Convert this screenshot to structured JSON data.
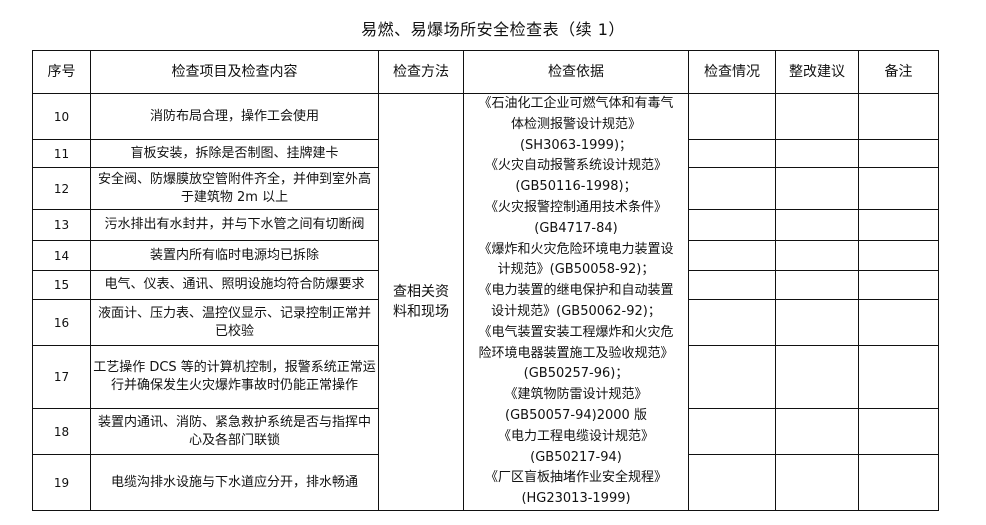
{
  "title": "易燃、易爆场所安全检查表（续 1）",
  "headers": [
    "序号",
    "检查项目及检查内容",
    "检查方法",
    "检查依据",
    "检查情况",
    "整改建议",
    "备注"
  ],
  "rows": [
    {
      "no": "10",
      "item": "消防布局合理，操作工会使用"
    },
    {
      "no": "11",
      "item": "盲板安装，拆除是否制图、挂牌建卡"
    },
    {
      "no": "12",
      "item": "安全阀、防爆膜放空管附件齐全，并伸到室外高于建筑物 2m 以上"
    },
    {
      "no": "13",
      "item": "污水排出有水封井，并与下水管之间有切断阀"
    },
    {
      "no": "14",
      "item": "装置内所有临时电源均已拆除"
    },
    {
      "no": "15",
      "item": "电气、仪表、通讯、照明设施均符合防爆要求"
    },
    {
      "no": "16",
      "item": "液面计、压力表、温控仪显示、记录控制正常并已校验"
    },
    {
      "no": "17",
      "item": "工艺操作 DCS 等的计算机控制，报警系统正常运行并确保发生火灾爆炸事故时仍能正常操作"
    },
    {
      "no": "18",
      "item": "装置内通讯、消防、紧急救护系统是否与指挥中心及各部门联锁"
    },
    {
      "no": "19",
      "item": "电缆沟排水设施与下水道应分开，排水畅通"
    }
  ],
  "method": "查相关资料和现场",
  "basis_lines": [
    "《石油化工企业可燃气体和有毒气",
    "体检测报警设计规范》",
    "(SH3063-1999)；",
    "《火灾自动报警系统设计规范》",
    "(GB50116-1998)；",
    "《火灾报警控制通用技术条件》",
    "(GB4717-84)",
    "《爆炸和火灾危险环境电力装置设",
    "计规范》(GB50058-92)；",
    "《电力装置的继电保护和自动装置",
    "设计规范》(GB50062-92)；",
    "《电气装置安装工程爆炸和火灾危",
    "险环境电器装置施工及验收规范》",
    "(GB50257-96)；",
    "《建筑物防雷设计规范》",
    "(GB50057-94)2000 版",
    "《电力工程电缆设计规范》",
    "(GB50217-94)",
    "《厂区盲板抽堵作业安全规程》",
    "(HG23013-1999)"
  ]
}
